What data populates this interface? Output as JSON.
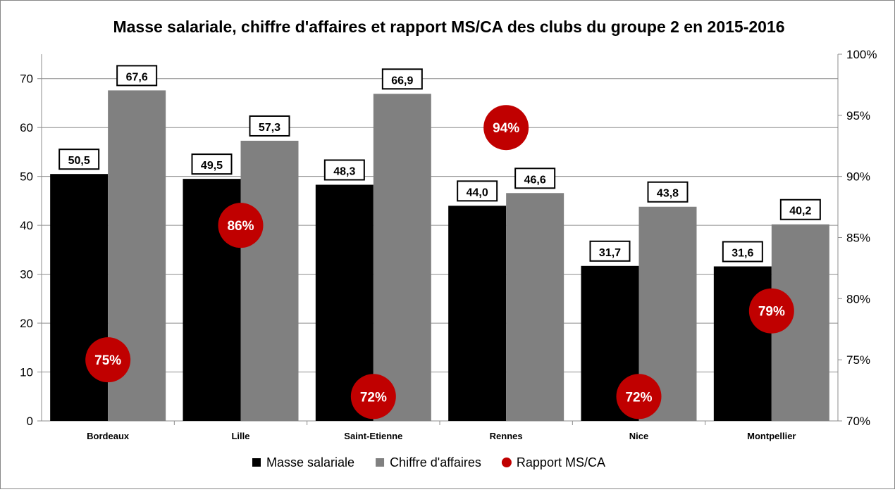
{
  "chart_data": {
    "type": "bar",
    "title": "Masse salariale, chiffre d'affaires et rapport MS/CA des clubs du groupe 2 en 2015-2016",
    "categories": [
      "Bordeaux",
      "Lille",
      "Saint-Etienne",
      "Rennes",
      "Nice",
      "Montpellier"
    ],
    "series": [
      {
        "name": "Masse salariale",
        "axis": "left",
        "color": "#000000",
        "values": [
          50.5,
          49.5,
          48.3,
          44.0,
          31.7,
          31.6
        ],
        "labels": [
          "50,5",
          "49,5",
          "48,3",
          "44,0",
          "31,7",
          "31,6"
        ]
      },
      {
        "name": "Chiffre d'affaires",
        "axis": "left",
        "color": "#808080",
        "values": [
          67.6,
          57.3,
          66.9,
          46.6,
          43.8,
          40.2
        ],
        "labels": [
          "67,6",
          "57,3",
          "66,9",
          "46,6",
          "43,8",
          "40,2"
        ]
      },
      {
        "name": "Rapport MS/CA",
        "axis": "right",
        "type": "scatter",
        "color": "#C00000",
        "values": [
          0.75,
          0.86,
          0.72,
          0.94,
          0.72,
          0.79
        ],
        "labels": [
          "75%",
          "86%",
          "72%",
          "94%",
          "72%",
          "79%"
        ]
      }
    ],
    "y_left": {
      "min": 0,
      "max": 75,
      "ticks": [
        0,
        10,
        20,
        30,
        40,
        50,
        60,
        70
      ]
    },
    "y_right": {
      "min": 0.7,
      "max": 1.0,
      "ticks": [
        0.7,
        0.75,
        0.8,
        0.85,
        0.9,
        0.95,
        1.0
      ],
      "tick_labels": [
        "70%",
        "75%",
        "80%",
        "85%",
        "90%",
        "95%",
        "100%"
      ]
    },
    "grid": true,
    "legend_position": "bottom"
  }
}
